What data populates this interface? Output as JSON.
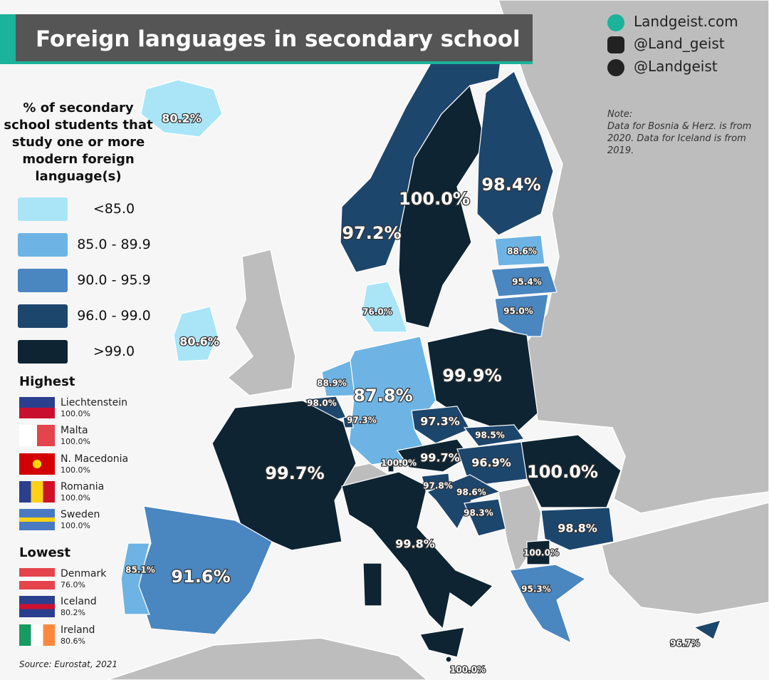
{
  "title": "Foreign languages in secondary school",
  "branding": {
    "website": "Landgeist.com",
    "instagram": "@Land_geist",
    "twitter": "@Landgeist"
  },
  "note": {
    "heading": "Note:",
    "text": "Data for Bosnia & Herz. is from 2020. Data for Iceland is from 2019."
  },
  "legend": {
    "title": "% of secondary school students that study one or more modern foreign language(s)",
    "items": [
      {
        "label": "<85.0",
        "color": "#a9e5f7"
      },
      {
        "label": "85.0 - 89.9",
        "color": "#6db4e4"
      },
      {
        "label": "90.0 - 95.9",
        "color": "#4a86c0"
      },
      {
        "label": "96.0 - 99.0",
        "color": "#1d466d"
      },
      {
        "label": ">99.0",
        "color": "#0e2432"
      }
    ]
  },
  "highest": {
    "heading": "Highest",
    "entries": [
      {
        "country": "Liechtenstein",
        "value": "100.0%"
      },
      {
        "country": "Malta",
        "value": "100.0%"
      },
      {
        "country": "N. Macedonia",
        "value": "100.0%"
      },
      {
        "country": "Romania",
        "value": "100.0%"
      },
      {
        "country": "Sweden",
        "value": "100.0%"
      }
    ]
  },
  "lowest": {
    "heading": "Lowest",
    "entries": [
      {
        "country": "Denmark",
        "value": "76.0%"
      },
      {
        "country": "Iceland",
        "value": "80.2%"
      },
      {
        "country": "Ireland",
        "value": "80.6%"
      }
    ]
  },
  "source": "Source: Eurostat, 2021",
  "map_labels": [
    "80.2%",
    "80.6%",
    "97.2%",
    "100.0%",
    "98.4%",
    "88.6%",
    "95.4%",
    "95.0%",
    "76.0%",
    "99.9%",
    "88.9%",
    "87.8%",
    "98.0%",
    "97.3%",
    "97.3%",
    "98.5%",
    "100.0%",
    "99.7%",
    "96.9%",
    "100.0%",
    "99.7%",
    "97.8%",
    "98.6%",
    "98.3%",
    "98.8%",
    "100.0%",
    "99.8%",
    "95.3%",
    "85.1%",
    "91.6%",
    "96.7%",
    "100.0%"
  ]
}
